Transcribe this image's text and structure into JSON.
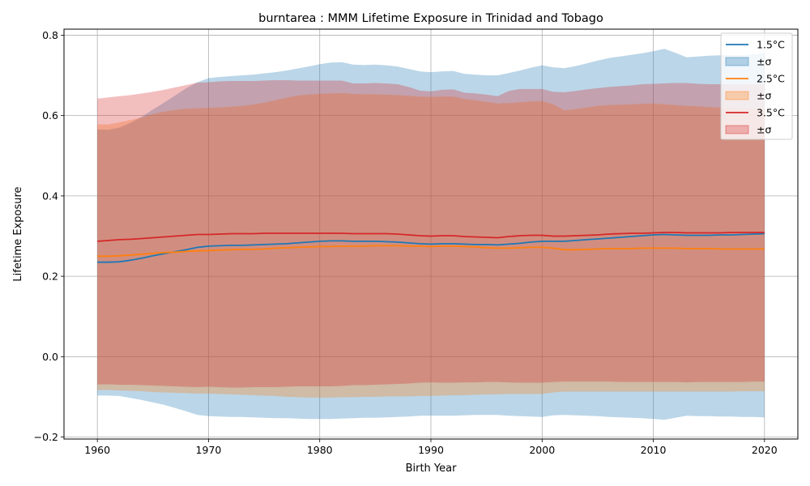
{
  "chart_data": {
    "type": "line",
    "title": "burntarea : MMM Lifetime Exposure in Trinidad and Tobago",
    "xlabel": "Birth Year",
    "ylabel": "Lifetime Exposure",
    "xlim": [
      1957,
      2023
    ],
    "ylim": [
      -0.205,
      0.815
    ],
    "xticks": [
      1960,
      1970,
      1980,
      1990,
      2000,
      2010,
      2020
    ],
    "yticks": [
      -0.2,
      0.0,
      0.2,
      0.4,
      0.6,
      0.8
    ],
    "ytick_labels": [
      "−0.2",
      "0.0",
      "0.2",
      "0.4",
      "0.6",
      "0.8"
    ],
    "grid": true,
    "legend_position": "top-right",
    "x": [
      1960,
      1961,
      1962,
      1963,
      1964,
      1965,
      1966,
      1967,
      1968,
      1969,
      1970,
      1971,
      1972,
      1973,
      1974,
      1975,
      1976,
      1977,
      1978,
      1979,
      1980,
      1981,
      1982,
      1983,
      1984,
      1985,
      1986,
      1987,
      1988,
      1989,
      1990,
      1991,
      1992,
      1993,
      1994,
      1995,
      1996,
      1997,
      1998,
      1999,
      2000,
      2001,
      2002,
      2003,
      2004,
      2005,
      2006,
      2007,
      2008,
      2009,
      2010,
      2011,
      2012,
      2013,
      2014,
      2015,
      2016,
      2017,
      2018,
      2019,
      2020
    ],
    "series": [
      {
        "name": "1.5°C",
        "band_label": "±σ",
        "color": "#1f77b4",
        "band_color": "#1f77b4",
        "band_opacity": 0.3,
        "values": [
          0.235,
          0.235,
          0.236,
          0.24,
          0.245,
          0.251,
          0.256,
          0.261,
          0.266,
          0.272,
          0.275,
          0.276,
          0.277,
          0.277,
          0.278,
          0.279,
          0.28,
          0.281,
          0.283,
          0.285,
          0.287,
          0.288,
          0.288,
          0.287,
          0.287,
          0.287,
          0.286,
          0.285,
          0.283,
          0.281,
          0.28,
          0.281,
          0.281,
          0.28,
          0.279,
          0.279,
          0.278,
          0.28,
          0.282,
          0.285,
          0.287,
          0.287,
          0.287,
          0.289,
          0.291,
          0.293,
          0.295,
          0.297,
          0.299,
          0.301,
          0.303,
          0.304,
          0.303,
          0.302,
          0.302,
          0.302,
          0.303,
          0.303,
          0.304,
          0.305,
          0.306
        ],
        "upper": [
          0.565,
          0.565,
          0.57,
          0.582,
          0.597,
          0.615,
          0.632,
          0.65,
          0.668,
          0.683,
          0.693,
          0.696,
          0.698,
          0.7,
          0.702,
          0.705,
          0.708,
          0.712,
          0.717,
          0.722,
          0.728,
          0.732,
          0.733,
          0.727,
          0.726,
          0.727,
          0.725,
          0.722,
          0.716,
          0.71,
          0.708,
          0.71,
          0.711,
          0.704,
          0.702,
          0.7,
          0.7,
          0.706,
          0.712,
          0.719,
          0.725,
          0.72,
          0.718,
          0.723,
          0.73,
          0.737,
          0.743,
          0.747,
          0.751,
          0.755,
          0.76,
          0.766,
          0.756,
          0.745,
          0.747,
          0.749,
          0.75,
          0.75,
          0.75,
          0.752,
          0.755
        ],
        "lower": [
          -0.097,
          -0.097,
          -0.098,
          -0.103,
          -0.108,
          -0.114,
          -0.12,
          -0.128,
          -0.136,
          -0.145,
          -0.148,
          -0.149,
          -0.15,
          -0.15,
          -0.151,
          -0.152,
          -0.153,
          -0.153,
          -0.154,
          -0.155,
          -0.155,
          -0.155,
          -0.154,
          -0.153,
          -0.152,
          -0.152,
          -0.151,
          -0.15,
          -0.149,
          -0.147,
          -0.147,
          -0.147,
          -0.147,
          -0.146,
          -0.145,
          -0.145,
          -0.145,
          -0.147,
          -0.148,
          -0.149,
          -0.15,
          -0.146,
          -0.145,
          -0.146,
          -0.147,
          -0.148,
          -0.15,
          -0.151,
          -0.152,
          -0.153,
          -0.155,
          -0.157,
          -0.152,
          -0.147,
          -0.148,
          -0.148,
          -0.149,
          -0.149,
          -0.15,
          -0.15,
          -0.151
        ]
      },
      {
        "name": "2.5°C",
        "band_label": "±σ",
        "color": "#ff7f0e",
        "band_color": "#ff7f0e",
        "band_opacity": 0.3,
        "values": [
          0.25,
          0.25,
          0.251,
          0.253,
          0.255,
          0.257,
          0.259,
          0.26,
          0.262,
          0.263,
          0.264,
          0.265,
          0.266,
          0.267,
          0.267,
          0.268,
          0.27,
          0.271,
          0.272,
          0.273,
          0.274,
          0.274,
          0.275,
          0.275,
          0.275,
          0.276,
          0.276,
          0.276,
          0.275,
          0.275,
          0.274,
          0.275,
          0.275,
          0.274,
          0.273,
          0.271,
          0.27,
          0.27,
          0.271,
          0.272,
          0.272,
          0.27,
          0.266,
          0.266,
          0.267,
          0.268,
          0.269,
          0.269,
          0.269,
          0.27,
          0.27,
          0.27,
          0.27,
          0.269,
          0.269,
          0.269,
          0.268,
          0.268,
          0.268,
          0.268,
          0.268
        ],
        "upper": [
          0.578,
          0.578,
          0.583,
          0.589,
          0.595,
          0.604,
          0.61,
          0.614,
          0.617,
          0.618,
          0.619,
          0.62,
          0.622,
          0.624,
          0.627,
          0.632,
          0.638,
          0.644,
          0.65,
          0.652,
          0.654,
          0.655,
          0.656,
          0.654,
          0.653,
          0.653,
          0.652,
          0.651,
          0.649,
          0.647,
          0.646,
          0.647,
          0.647,
          0.641,
          0.638,
          0.634,
          0.63,
          0.631,
          0.633,
          0.635,
          0.636,
          0.628,
          0.613,
          0.616,
          0.62,
          0.624,
          0.626,
          0.627,
          0.628,
          0.629,
          0.63,
          0.628,
          0.626,
          0.624,
          0.623,
          0.621,
          0.62,
          0.619,
          0.618,
          0.617,
          0.616
        ],
        "lower": [
          -0.083,
          -0.083,
          -0.084,
          -0.085,
          -0.086,
          -0.088,
          -0.089,
          -0.09,
          -0.091,
          -0.092,
          -0.092,
          -0.093,
          -0.094,
          -0.095,
          -0.096,
          -0.097,
          -0.098,
          -0.1,
          -0.101,
          -0.102,
          -0.102,
          -0.102,
          -0.101,
          -0.101,
          -0.1,
          -0.1,
          -0.099,
          -0.099,
          -0.099,
          -0.098,
          -0.098,
          -0.097,
          -0.096,
          -0.096,
          -0.095,
          -0.094,
          -0.094,
          -0.093,
          -0.093,
          -0.093,
          -0.093,
          -0.089,
          -0.087,
          -0.087,
          -0.087,
          -0.087,
          -0.087,
          -0.087,
          -0.087,
          -0.087,
          -0.087,
          -0.087,
          -0.087,
          -0.087,
          -0.087,
          -0.087,
          -0.087,
          -0.087,
          -0.086,
          -0.086,
          -0.086
        ]
      },
      {
        "name": "3.5°C",
        "band_label": "±σ",
        "color": "#d62728",
        "band_color": "#d62728",
        "band_opacity": 0.3,
        "values": [
          0.287,
          0.289,
          0.291,
          0.292,
          0.294,
          0.296,
          0.298,
          0.3,
          0.302,
          0.304,
          0.304,
          0.305,
          0.306,
          0.306,
          0.306,
          0.307,
          0.307,
          0.307,
          0.307,
          0.307,
          0.307,
          0.307,
          0.307,
          0.306,
          0.306,
          0.306,
          0.306,
          0.305,
          0.303,
          0.301,
          0.3,
          0.301,
          0.301,
          0.299,
          0.298,
          0.297,
          0.296,
          0.299,
          0.301,
          0.302,
          0.302,
          0.3,
          0.3,
          0.301,
          0.302,
          0.303,
          0.305,
          0.306,
          0.307,
          0.307,
          0.308,
          0.309,
          0.309,
          0.308,
          0.308,
          0.308,
          0.308,
          0.309,
          0.309,
          0.309,
          0.309
        ],
        "upper": [
          0.642,
          0.645,
          0.648,
          0.651,
          0.655,
          0.659,
          0.664,
          0.67,
          0.676,
          0.682,
          0.683,
          0.685,
          0.686,
          0.686,
          0.686,
          0.687,
          0.688,
          0.688,
          0.687,
          0.687,
          0.687,
          0.687,
          0.687,
          0.68,
          0.68,
          0.681,
          0.68,
          0.678,
          0.671,
          0.662,
          0.66,
          0.664,
          0.665,
          0.657,
          0.655,
          0.652,
          0.648,
          0.661,
          0.666,
          0.666,
          0.666,
          0.659,
          0.658,
          0.661,
          0.665,
          0.668,
          0.671,
          0.673,
          0.675,
          0.678,
          0.679,
          0.68,
          0.681,
          0.681,
          0.679,
          0.678,
          0.678,
          0.678,
          0.678,
          0.678,
          0.678
        ],
        "lower": [
          -0.069,
          -0.069,
          -0.07,
          -0.07,
          -0.071,
          -0.072,
          -0.073,
          -0.074,
          -0.075,
          -0.076,
          -0.075,
          -0.076,
          -0.077,
          -0.077,
          -0.076,
          -0.076,
          -0.076,
          -0.075,
          -0.074,
          -0.074,
          -0.074,
          -0.074,
          -0.073,
          -0.071,
          -0.071,
          -0.07,
          -0.069,
          -0.068,
          -0.067,
          -0.065,
          -0.064,
          -0.065,
          -0.065,
          -0.064,
          -0.064,
          -0.063,
          -0.063,
          -0.064,
          -0.065,
          -0.065,
          -0.065,
          -0.063,
          -0.062,
          -0.062,
          -0.062,
          -0.062,
          -0.062,
          -0.063,
          -0.063,
          -0.063,
          -0.063,
          -0.063,
          -0.063,
          -0.064,
          -0.063,
          -0.063,
          -0.063,
          -0.063,
          -0.063,
          -0.062,
          -0.062
        ]
      }
    ]
  }
}
